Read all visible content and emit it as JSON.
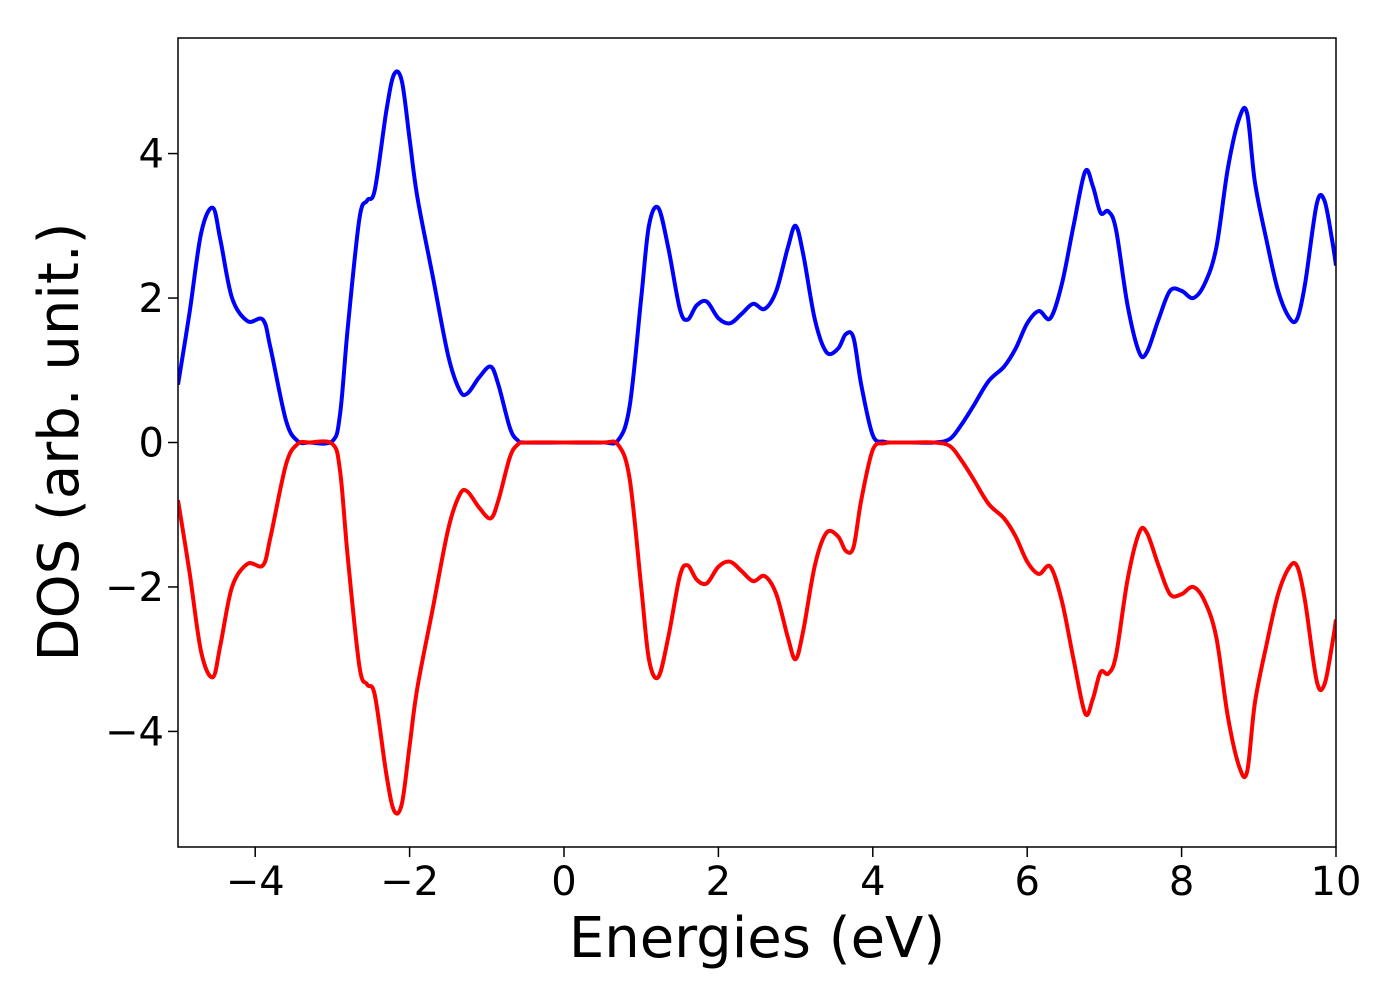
{
  "chart_data": {
    "type": "line",
    "title": "",
    "xlabel": "Energies (eV)",
    "ylabel": "DOS (arb. unit.)",
    "xlim": [
      -5,
      10
    ],
    "ylim": [
      -5.6,
      5.6
    ],
    "xticks": [
      -4,
      -2,
      0,
      2,
      4,
      6,
      8,
      10
    ],
    "xtick_labels": [
      "−4",
      "−2",
      "0",
      "2",
      "4",
      "6",
      "8",
      "10"
    ],
    "yticks": [
      -4,
      -2,
      0,
      2,
      4
    ],
    "ytick_labels": [
      "−4",
      "−2",
      "0",
      "2",
      "4"
    ],
    "grid": false,
    "legend": "none",
    "series": [
      {
        "color": "#0000ff",
        "x": [
          -5.0,
          -4.85,
          -4.7,
          -4.55,
          -4.45,
          -4.3,
          -4.1,
          -3.9,
          -3.8,
          -3.6,
          -3.45,
          -3.3,
          -3.0,
          -2.9,
          -2.8,
          -2.65,
          -2.55,
          -2.45,
          -2.3,
          -2.2,
          -2.1,
          -2.0,
          -1.9,
          -1.7,
          -1.5,
          -1.35,
          -1.25,
          -1.1,
          -0.95,
          -0.85,
          -0.7,
          -0.6,
          -0.5,
          0.0,
          0.5,
          0.7,
          0.85,
          1.0,
          1.1,
          1.22,
          1.35,
          1.5,
          1.6,
          1.72,
          1.85,
          2.0,
          2.15,
          2.3,
          2.45,
          2.6,
          2.75,
          2.9,
          3.0,
          3.1,
          3.25,
          3.4,
          3.55,
          3.65,
          3.75,
          3.85,
          4.0,
          4.15,
          4.3,
          4.5,
          4.8,
          5.0,
          5.15,
          5.3,
          5.5,
          5.7,
          5.85,
          6.0,
          6.15,
          6.3,
          6.45,
          6.6,
          6.75,
          6.85,
          6.95,
          7.05,
          7.15,
          7.3,
          7.45,
          7.55,
          7.7,
          7.85,
          8.0,
          8.15,
          8.3,
          8.45,
          8.6,
          8.75,
          8.85,
          8.95,
          9.1,
          9.25,
          9.4,
          9.5,
          9.6,
          9.75,
          9.85,
          9.95,
          10.0
        ],
        "y": [
          0.8,
          1.8,
          2.9,
          3.25,
          2.8,
          2.0,
          1.68,
          1.7,
          1.3,
          0.3,
          0.02,
          0.0,
          0.02,
          0.4,
          1.6,
          3.1,
          3.35,
          3.5,
          4.6,
          5.1,
          5.0,
          4.2,
          3.4,
          2.3,
          1.2,
          0.72,
          0.68,
          0.9,
          1.05,
          0.8,
          0.2,
          0.03,
          0.0,
          0.0,
          0.0,
          0.03,
          0.5,
          2.0,
          3.0,
          3.25,
          2.7,
          1.85,
          1.7,
          1.9,
          1.95,
          1.72,
          1.65,
          1.78,
          1.92,
          1.85,
          2.1,
          2.7,
          3.0,
          2.6,
          1.7,
          1.25,
          1.3,
          1.5,
          1.45,
          0.8,
          0.1,
          0.01,
          0.0,
          0.0,
          0.0,
          0.05,
          0.25,
          0.5,
          0.85,
          1.05,
          1.3,
          1.65,
          1.82,
          1.72,
          2.2,
          3.0,
          3.75,
          3.55,
          3.18,
          3.2,
          2.95,
          1.9,
          1.25,
          1.25,
          1.7,
          2.1,
          2.1,
          2.0,
          2.2,
          2.7,
          3.8,
          4.5,
          4.55,
          3.6,
          2.8,
          2.1,
          1.72,
          1.72,
          2.2,
          3.3,
          3.35,
          2.8,
          2.45
        ]
      },
      {
        "color": "#ff0000",
        "x": [
          -5.0,
          -4.85,
          -4.7,
          -4.55,
          -4.45,
          -4.3,
          -4.1,
          -3.9,
          -3.8,
          -3.6,
          -3.45,
          -3.3,
          -3.0,
          -2.9,
          -2.8,
          -2.65,
          -2.55,
          -2.45,
          -2.3,
          -2.2,
          -2.1,
          -2.0,
          -1.9,
          -1.7,
          -1.5,
          -1.35,
          -1.25,
          -1.1,
          -0.95,
          -0.85,
          -0.7,
          -0.6,
          -0.5,
          0.0,
          0.5,
          0.7,
          0.85,
          1.0,
          1.1,
          1.22,
          1.35,
          1.5,
          1.6,
          1.72,
          1.85,
          2.0,
          2.15,
          2.3,
          2.45,
          2.6,
          2.75,
          2.9,
          3.0,
          3.1,
          3.25,
          3.4,
          3.55,
          3.65,
          3.75,
          3.85,
          4.0,
          4.15,
          4.3,
          4.5,
          4.8,
          5.0,
          5.15,
          5.3,
          5.5,
          5.7,
          5.85,
          6.0,
          6.15,
          6.3,
          6.45,
          6.6,
          6.75,
          6.85,
          6.95,
          7.05,
          7.15,
          7.3,
          7.45,
          7.55,
          7.7,
          7.85,
          8.0,
          8.15,
          8.3,
          8.45,
          8.6,
          8.75,
          8.85,
          8.95,
          9.1,
          9.25,
          9.4,
          9.5,
          9.6,
          9.75,
          9.85,
          9.95,
          10.0
        ],
        "y": [
          -0.8,
          -1.8,
          -2.9,
          -3.25,
          -2.8,
          -2.0,
          -1.68,
          -1.7,
          -1.3,
          -0.3,
          -0.02,
          0.0,
          -0.02,
          -0.4,
          -1.6,
          -3.1,
          -3.35,
          -3.5,
          -4.6,
          -5.1,
          -5.0,
          -4.2,
          -3.4,
          -2.3,
          -1.2,
          -0.72,
          -0.68,
          -0.9,
          -1.05,
          -0.8,
          -0.2,
          -0.03,
          0.0,
          0.0,
          0.0,
          -0.03,
          -0.5,
          -2.0,
          -3.0,
          -3.25,
          -2.7,
          -1.85,
          -1.7,
          -1.9,
          -1.95,
          -1.72,
          -1.65,
          -1.78,
          -1.92,
          -1.85,
          -2.1,
          -2.7,
          -3.0,
          -2.6,
          -1.7,
          -1.25,
          -1.3,
          -1.5,
          -1.45,
          -0.8,
          -0.1,
          -0.01,
          0.0,
          0.0,
          0.0,
          -0.05,
          -0.25,
          -0.5,
          -0.85,
          -1.05,
          -1.3,
          -1.65,
          -1.82,
          -1.72,
          -2.2,
          -3.0,
          -3.75,
          -3.55,
          -3.18,
          -3.2,
          -2.95,
          -1.9,
          -1.25,
          -1.25,
          -1.7,
          -2.1,
          -2.1,
          -2.0,
          -2.2,
          -2.7,
          -3.8,
          -4.5,
          -4.55,
          -3.6,
          -2.8,
          -2.1,
          -1.72,
          -1.72,
          -2.2,
          -3.3,
          -3.35,
          -2.8,
          -2.45
        ]
      }
    ]
  }
}
